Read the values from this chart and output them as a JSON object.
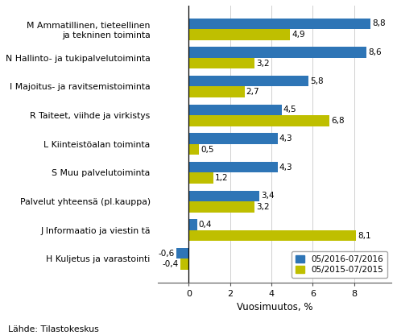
{
  "categories": [
    "M Ammatillinen, tieteellinen\nja tekninen toiminta",
    "N Hallinto- ja tukipalvelutoiminta",
    "I Majoitus- ja ravitsemistoiminta",
    "R Taiteet, viihde ja virkistys",
    "L Kiinteistöalan toiminta",
    "S Muu palvelutoiminta",
    "Palvelut yhteensä (pl.kauppa)",
    "J Informaatio ja viestinôä",
    "H Kuljetus ja varastointi"
  ],
  "categories_display": [
    "M Ammatillinen, tieteellinen\nja tekninen toiminta",
    "N Hallinto- ja tukipalvelutoiminta",
    "I Majoitus- ja ravitsemistoiminta",
    "R Taiteet, viihde ja virkistys",
    "L Kiinteistöalan toiminta",
    "S Muu palvelutoiminta",
    "Palvelut yhteensä (pl.kauppa)",
    "J Informaatio ja viestin tä",
    "H Kuljetus ja varastointi"
  ],
  "values_2016": [
    8.8,
    8.6,
    5.8,
    4.5,
    4.3,
    4.3,
    3.4,
    0.4,
    -0.6
  ],
  "values_2015": [
    4.9,
    3.2,
    2.7,
    6.8,
    0.5,
    1.2,
    3.2,
    8.1,
    -0.4
  ],
  "color_2016": "#2E75B6",
  "color_2015": "#BFBF00",
  "legend_label_2016": "05/2016-07/2016",
  "legend_label_2015": "05/2015-07/2015",
  "xlabel": "Vuosimuutos, %",
  "source": "Lähde: Tilastokeskus",
  "xlim": [
    -1.5,
    9.8
  ],
  "xticks": [
    0,
    2,
    4,
    6,
    8
  ],
  "bar_height": 0.38,
  "background_color": "#ffffff",
  "label_fontsize": 7.5,
  "ytick_fontsize": 7.8,
  "xlabel_fontsize": 8.5
}
